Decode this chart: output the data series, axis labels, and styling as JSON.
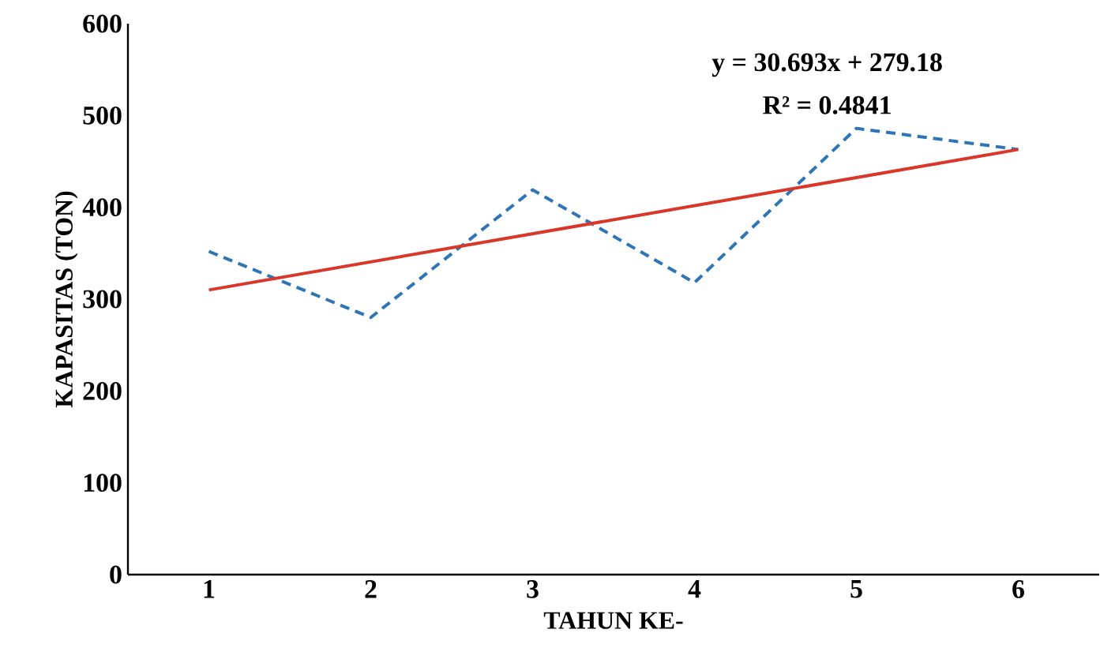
{
  "chart_data": {
    "type": "line",
    "xlabel": "TAHUN KE-",
    "ylabel": "KAPASITAS (TON)",
    "x": [
      1,
      2,
      3,
      4,
      5,
      6
    ],
    "xlim": [
      0.5,
      6.5
    ],
    "xticks": [
      1,
      2,
      3,
      4,
      5,
      6
    ],
    "ylim": [
      0,
      600
    ],
    "yticks": [
      0,
      100,
      200,
      300,
      400,
      500,
      600
    ],
    "grid": false,
    "marker": "none",
    "series": [
      {
        "color": "#2e75b6",
        "line_style": "dashed",
        "values": [
          352,
          280,
          419,
          318,
          486,
          463
        ]
      },
      {
        "type": "line",
        "color": "#d9372a",
        "line_style": "solid",
        "x": [
          1,
          6
        ],
        "values": [
          310,
          463
        ]
      }
    ],
    "annotations": [
      "y = 30.693x + 279.18",
      "R² = 0.4841"
    ]
  }
}
